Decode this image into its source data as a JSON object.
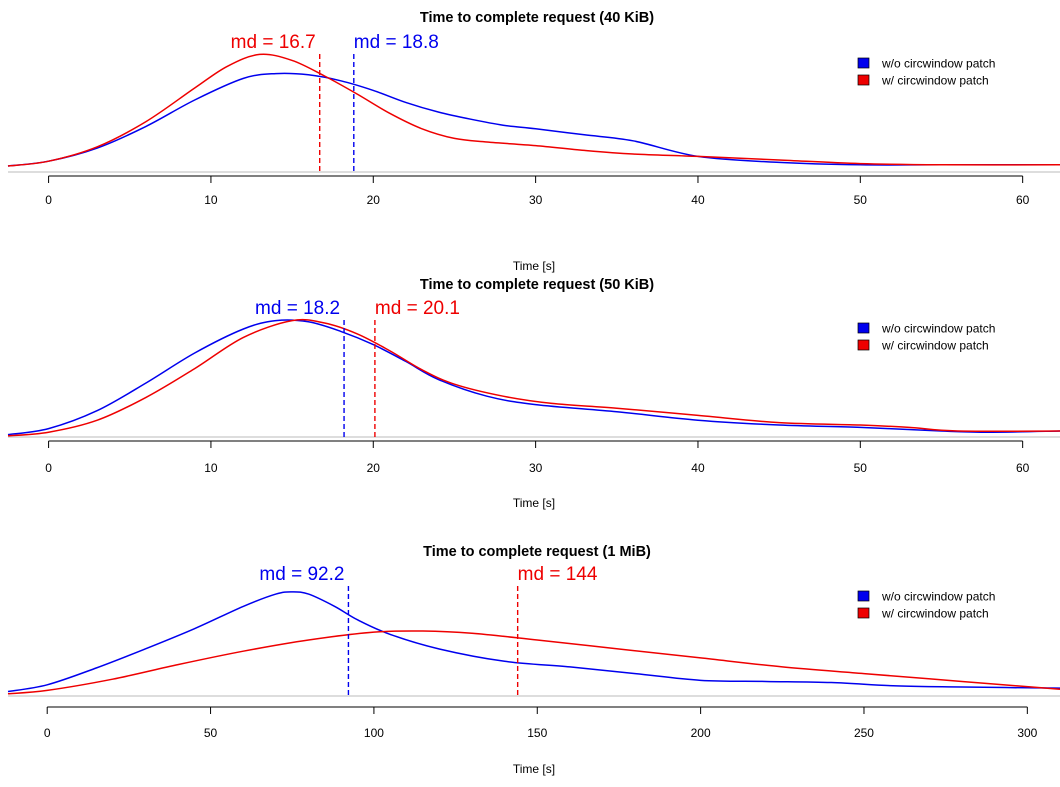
{
  "chart_data": [
    {
      "type": "line",
      "title": "Time to complete request (40 KiB)",
      "xlabel": "Time [s]",
      "ylabel": "",
      "xlim": [
        -2.5,
        62.3
      ],
      "xticks": [
        0,
        10,
        20,
        30,
        40,
        50,
        60
      ],
      "ylim": [
        0,
        1.0
      ],
      "legend_position": "top-right",
      "series": [
        {
          "name": "w/o circwindow patch",
          "color": "#0000ee",
          "x": [
            -2.5,
            0,
            3,
            6,
            9,
            12,
            14,
            16,
            18,
            20,
            22,
            24,
            26,
            28,
            30,
            33,
            36,
            40,
            45,
            50,
            55,
            62.3
          ],
          "y": [
            0.05,
            0.09,
            0.2,
            0.38,
            0.6,
            0.78,
            0.82,
            0.81,
            0.76,
            0.68,
            0.58,
            0.5,
            0.44,
            0.39,
            0.36,
            0.31,
            0.26,
            0.13,
            0.08,
            0.06,
            0.06,
            0.06
          ]
        },
        {
          "name": "w/ circwindow patch",
          "color": "#ee0000",
          "x": [
            -2.5,
            0,
            3,
            6,
            9,
            11,
            13,
            15,
            17,
            19,
            21,
            23,
            25,
            27,
            30,
            33,
            36,
            40,
            45,
            50,
            55,
            62.3
          ],
          "y": [
            0.05,
            0.09,
            0.21,
            0.42,
            0.7,
            0.88,
            0.98,
            0.93,
            0.8,
            0.65,
            0.49,
            0.36,
            0.28,
            0.25,
            0.22,
            0.18,
            0.15,
            0.13,
            0.1,
            0.07,
            0.06,
            0.06
          ]
        }
      ],
      "annotations": [
        {
          "text": "md = 16.7",
          "x": 16.7,
          "color": "#ee0000",
          "anchor": "end"
        },
        {
          "text": "md = 18.8",
          "x": 18.8,
          "color": "#0000ee",
          "anchor": "start"
        }
      ]
    },
    {
      "type": "line",
      "title": "Time to complete request (50 KiB)",
      "xlabel": "Time [s]",
      "ylabel": "",
      "xlim": [
        -2.5,
        62.3
      ],
      "xticks": [
        0,
        10,
        20,
        30,
        40,
        50,
        60
      ],
      "ylim": [
        0,
        1.0
      ],
      "legend_position": "top-right",
      "series": [
        {
          "name": "w/o circwindow patch",
          "color": "#0000ee",
          "x": [
            -2.5,
            0,
            3,
            6,
            9,
            12,
            14,
            16,
            18,
            20,
            22,
            24,
            27,
            30,
            35,
            40,
            45,
            50,
            55,
            58,
            62.3
          ],
          "y": [
            0.02,
            0.07,
            0.22,
            0.45,
            0.7,
            0.9,
            0.97,
            0.96,
            0.88,
            0.77,
            0.63,
            0.48,
            0.34,
            0.27,
            0.21,
            0.14,
            0.1,
            0.08,
            0.05,
            0.04,
            0.05
          ]
        },
        {
          "name": "w/ circwindow patch",
          "color": "#ee0000",
          "x": [
            -2.5,
            0,
            3,
            6,
            9,
            12,
            15,
            17,
            19,
            21,
            23,
            25,
            28,
            31,
            35,
            40,
            45,
            50,
            53,
            56,
            62.3
          ],
          "y": [
            0.01,
            0.04,
            0.14,
            0.33,
            0.57,
            0.83,
            0.97,
            0.95,
            0.86,
            0.72,
            0.56,
            0.44,
            0.34,
            0.28,
            0.24,
            0.18,
            0.12,
            0.1,
            0.08,
            0.05,
            0.05
          ]
        }
      ],
      "annotations": [
        {
          "text": "md = 18.2",
          "x": 18.2,
          "color": "#0000ee",
          "anchor": "end"
        },
        {
          "text": "md = 20.1",
          "x": 20.1,
          "color": "#ee0000",
          "anchor": "start"
        }
      ]
    },
    {
      "type": "line",
      "title": "Time to complete request (1 MiB)",
      "xlabel": "Time [s]",
      "ylabel": "",
      "xlim": [
        -12,
        310
      ],
      "xticks": [
        0,
        50,
        100,
        150,
        200,
        250,
        300
      ],
      "ylim": [
        0,
        1.0
      ],
      "legend_position": "top-right",
      "series": [
        {
          "name": "w/o circwindow patch",
          "color": "#0000ee",
          "x": [
            -12,
            0,
            15,
            30,
            45,
            60,
            70,
            75,
            80,
            88,
            95,
            105,
            120,
            140,
            160,
            180,
            200,
            220,
            240,
            260,
            280,
            310
          ],
          "y": [
            0.04,
            0.1,
            0.25,
            0.42,
            0.6,
            0.8,
            0.91,
            0.93,
            0.91,
            0.8,
            0.68,
            0.55,
            0.42,
            0.31,
            0.26,
            0.2,
            0.14,
            0.13,
            0.12,
            0.09,
            0.08,
            0.07
          ]
        },
        {
          "name": "w/ circwindow patch",
          "color": "#ee0000",
          "x": [
            -12,
            0,
            20,
            40,
            60,
            80,
            100,
            115,
            130,
            150,
            175,
            200,
            225,
            250,
            280,
            310
          ],
          "y": [
            0.02,
            0.05,
            0.15,
            0.28,
            0.4,
            0.5,
            0.57,
            0.58,
            0.56,
            0.5,
            0.42,
            0.34,
            0.26,
            0.2,
            0.13,
            0.06
          ]
        }
      ],
      "annotations": [
        {
          "text": "md = 92.2",
          "x": 92.2,
          "color": "#0000ee",
          "anchor": "end"
        },
        {
          "text": "md = 144",
          "x": 144,
          "color": "#ee0000",
          "anchor": "start"
        }
      ]
    }
  ]
}
